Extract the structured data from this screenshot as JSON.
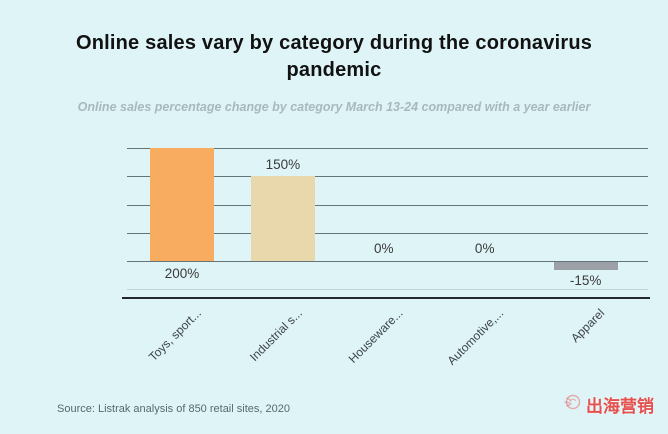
{
  "page": {
    "background": "#DFF4F7"
  },
  "header": {
    "title": "Online sales vary by category during the coronavirus pandemic",
    "subtitle": "Online sales percentage change by category  March 13-24 compared with a year earlier"
  },
  "chart_data": {
    "type": "bar",
    "title": "Online sales vary by category during the coronavirus pandemic",
    "subtitle": "Online sales percentage change by category  March 13-24 compared with a year earlier",
    "categories": [
      "Toys, sport...",
      "Industrial s...",
      "Houseware...",
      "Automotive,...",
      "Apparel"
    ],
    "values": [
      200,
      150,
      0,
      0,
      -15
    ],
    "value_labels": [
      "200%",
      "150%",
      "0%",
      "0%",
      "-15%"
    ],
    "bar_colors": [
      "#F8AC60",
      "#EAD8AD",
      null,
      null,
      "#9BA1A6"
    ],
    "ylim": [
      -50,
      200
    ],
    "gridlines": [
      200,
      150,
      100,
      50,
      0,
      -50
    ],
    "grid": true,
    "legend": false,
    "xlabel": "",
    "ylabel": ""
  },
  "footer": {
    "source": "Source: Listrak analysis of 850 retail sites, 2020",
    "brand": "出海营销",
    "brand_color": "#E4514E",
    "brand_icon": "globe-sketch-icon"
  }
}
